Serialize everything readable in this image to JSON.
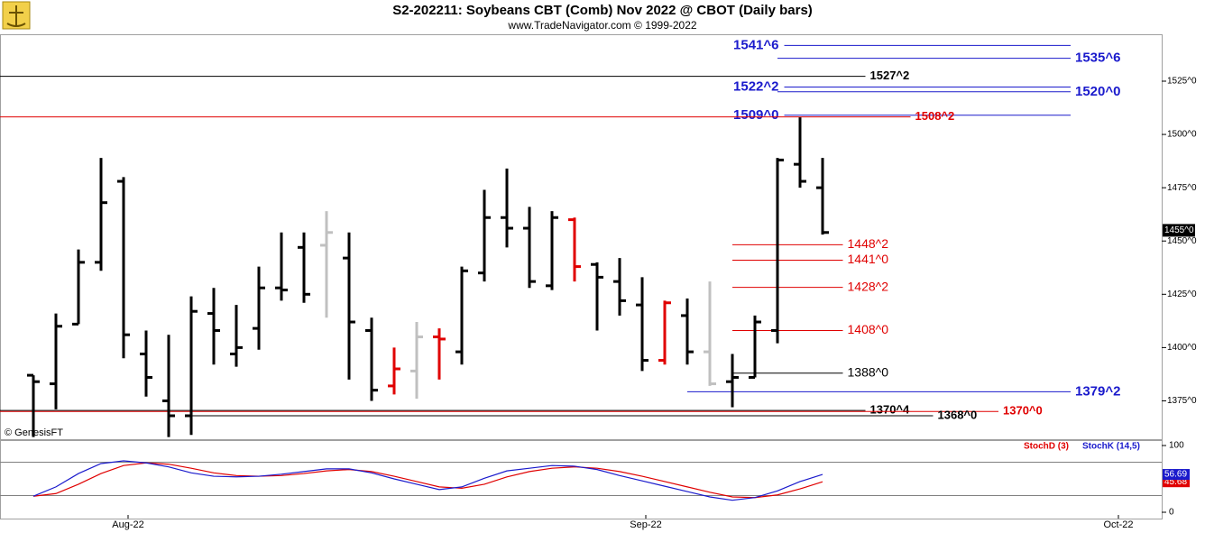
{
  "chart_data": [
    {
      "type": "ohlc",
      "title": "S2-202211:  Soybeans CBT (Comb) Nov 2022 @ CBOT  (Daily bars)",
      "subtitle": "www.TradeNavigator.com © 1999-2022",
      "watermark": "© GenesisFT",
      "categories": [
        null,
        null,
        null,
        null,
        null,
        null,
        null,
        null,
        null,
        null,
        null,
        null,
        null,
        null,
        null,
        null,
        null,
        null,
        null,
        null,
        null,
        null,
        null,
        null,
        null,
        null,
        null,
        null,
        null,
        null,
        null,
        null,
        null,
        null,
        null,
        null
      ],
      "open": [
        1387,
        1383,
        1411,
        1440,
        1478,
        1397,
        1375,
        1368,
        1416,
        1397,
        1409,
        1428,
        1447,
        1448,
        1442,
        1408,
        1382,
        1389,
        1405,
        1398,
        1435,
        1461,
        1456,
        1429,
        1460,
        1439,
        1431,
        1420,
        1394,
        1415,
        1398,
        1384,
        1386,
        1408,
        1486,
        1475
      ],
      "high": [
        1387,
        1416,
        1446,
        1489,
        1480,
        1408,
        1406,
        1424,
        1428,
        1420,
        1438,
        1454,
        1454,
        1464,
        1454,
        1414,
        1400,
        1412,
        1409,
        1438,
        1474,
        1484,
        1466,
        1464,
        1461,
        1440,
        1442,
        1433,
        1422,
        1423,
        1431,
        1397,
        1415,
        1489,
        1508,
        1489
      ],
      "low": [
        1358,
        1371,
        1411,
        1436,
        1395,
        1377,
        1358,
        1359,
        1392,
        1391,
        1399,
        1422,
        1421,
        1414,
        1385,
        1375,
        1378,
        1376,
        1385,
        1392,
        1431,
        1447,
        1428,
        1427,
        1431,
        1408,
        1415,
        1389,
        1392,
        1392,
        1382,
        1372,
        1386,
        1402,
        1475,
        1453
      ],
      "close": [
        1384,
        1410,
        1440,
        1468,
        1406,
        1386,
        1368,
        1417,
        1408,
        1400,
        1428,
        1427,
        1425,
        1454,
        1412,
        1380,
        1390,
        1405,
        1404,
        1436,
        1461,
        1456,
        1431,
        1461,
        1438,
        1433,
        1422,
        1394,
        1421,
        1398,
        1383,
        1386,
        1412,
        1488,
        1478,
        1454
      ],
      "colors": [
        "#000000",
        "#000000",
        "#000000",
        "#000000",
        "#000000",
        "#000000",
        "#000000",
        "#000000",
        "#000000",
        "#000000",
        "#000000",
        "#000000",
        "#000000",
        "#c0c0c0",
        "#000000",
        "#000000",
        "#e00000",
        "#c0c0c0",
        "#e00000",
        "#000000",
        "#000000",
        "#000000",
        "#000000",
        "#000000",
        "#e00000",
        "#000000",
        "#000000",
        "#000000",
        "#e00000",
        "#000000",
        "#c0c0c0",
        "#000000",
        "#000000",
        "#000000",
        "#000000",
        "#000000"
      ],
      "xlim": [
        -1.48,
        50.04
      ],
      "xticks": [
        {
          "value": 4.2,
          "label": "Aug-22"
        },
        {
          "value": 27.16,
          "label": "Sep-22"
        },
        {
          "value": 48.12,
          "label": "Oct-22"
        }
      ],
      "ylim": [
        1357,
        1547
      ],
      "yticks": [
        {
          "value": 1375,
          "label": "1375^0"
        },
        {
          "value": 1400,
          "label": "1400^0"
        },
        {
          "value": 1425,
          "label": "1425^0"
        },
        {
          "value": 1450,
          "label": "1450^0"
        },
        {
          "value": 1475,
          "label": "1475^0"
        },
        {
          "value": 1500,
          "label": "1500^0"
        },
        {
          "value": 1525,
          "label": "1525^0"
        }
      ],
      "last": {
        "value": 1455,
        "label": "1455^0"
      },
      "levels": [
        {
          "value": 1541.75,
          "label": "1541^6",
          "color": "#1a1acc",
          "start": 33.3,
          "end": 46,
          "side": "left",
          "bold": true
        },
        {
          "value": 1535.75,
          "label": "1535^6",
          "color": "#1a1acc",
          "start": 33,
          "end": 46,
          "side": "right",
          "bold": true
        },
        {
          "value": 1527.25,
          "label": "1527^2",
          "color": "#000000",
          "start": -1.5,
          "end": 36.9,
          "side": "right",
          "bold": true
        },
        {
          "value": 1522.25,
          "label": "1522^2",
          "color": "#1a1acc",
          "start": 33.3,
          "end": 46,
          "side": "left",
          "bold": true
        },
        {
          "value": 1520,
          "label": "1520^0",
          "color": "#1a1acc",
          "start": 33,
          "end": 46,
          "side": "right",
          "bold": true
        },
        {
          "value": 1509,
          "label": "1509^0",
          "color": "#1a1acc",
          "start": 33.3,
          "end": 46,
          "side": "left",
          "bold": true
        },
        {
          "value": 1508.25,
          "label": "1508^2",
          "color": "#e00000",
          "start": -1.5,
          "end": 38.9,
          "side": "right",
          "bold": true
        },
        {
          "value": 1448.25,
          "label": "1448^2",
          "color": "#e00000",
          "start": 31,
          "end": 35.9,
          "side": "right",
          "bold": false
        },
        {
          "value": 1441,
          "label": "1441^0",
          "color": "#e00000",
          "start": 31,
          "end": 35.9,
          "side": "right",
          "bold": false
        },
        {
          "value": 1428.25,
          "label": "1428^2",
          "color": "#e00000",
          "start": 31,
          "end": 35.9,
          "side": "right",
          "bold": false
        },
        {
          "value": 1408,
          "label": "1408^0",
          "color": "#e00000",
          "start": 31,
          "end": 35.9,
          "side": "right",
          "bold": false
        },
        {
          "value": 1388,
          "label": "1388^0",
          "color": "#000000",
          "start": 31,
          "end": 35.9,
          "side": "right",
          "bold": false
        },
        {
          "value": 1379.25,
          "label": "1379^2",
          "color": "#1a1acc",
          "start": 29,
          "end": 46,
          "side": "right",
          "bold": true
        },
        {
          "value": 1370.5,
          "label": "1370^4",
          "color": "#000000",
          "start": -1.5,
          "end": 36.9,
          "side": "right",
          "bold": true
        },
        {
          "value": 1370,
          "label": "1370^0",
          "color": "#e00000",
          "start": -1.5,
          "end": 42.8,
          "side": "right",
          "bold": true
        },
        {
          "value": 1368,
          "label": "1368^0",
          "color": "#000000",
          "start": 6.9,
          "end": 39.9,
          "side": "right",
          "bold": true
        }
      ]
    },
    {
      "type": "line",
      "categories": [
        null,
        null,
        null,
        null,
        null,
        null,
        null,
        null,
        null,
        null,
        null,
        null,
        null,
        null,
        null,
        null,
        null,
        null,
        null,
        null,
        null,
        null,
        null,
        null,
        null,
        null,
        null,
        null,
        null,
        null,
        null,
        null,
        null,
        null,
        null,
        null
      ],
      "ylim": [
        0,
        100
      ],
      "yticks": [
        0,
        100
      ],
      "hlines": [
        25,
        75
      ],
      "series": [
        {
          "name": "StochD (3)",
          "color": "#e00000",
          "values": [
            24,
            28,
            42,
            58,
            70,
            74,
            72,
            66,
            59,
            55,
            54,
            55,
            58,
            62,
            64,
            61,
            54,
            46,
            38,
            36,
            42,
            53,
            61,
            66,
            68,
            66,
            61,
            54,
            46,
            38,
            30,
            23,
            22,
            26,
            35,
            45.68
          ]
        },
        {
          "name": "StochK (14,5)",
          "color": "#1a1acc",
          "values": [
            24,
            38,
            58,
            73,
            77,
            74,
            68,
            59,
            54,
            53,
            54,
            57,
            61,
            65,
            65,
            59,
            50,
            42,
            34,
            38,
            51,
            62,
            66,
            70,
            69,
            64,
            55,
            47,
            39,
            31,
            23,
            18,
            22,
            32,
            46,
            56.69
          ]
        }
      ]
    }
  ]
}
